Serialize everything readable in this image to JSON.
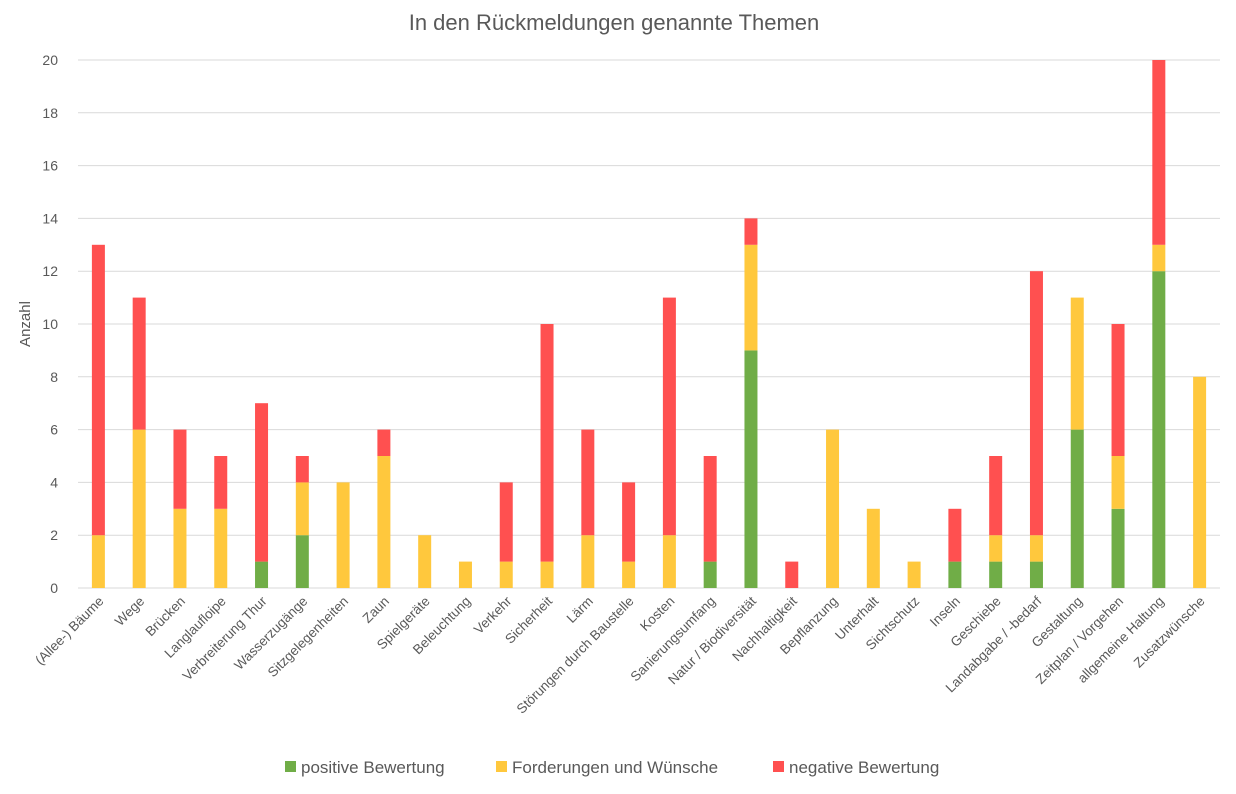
{
  "chart_data": {
    "type": "bar",
    "stacked": true,
    "title": "In den Rückmeldungen genannte Themen",
    "xlabel": "",
    "ylabel": "Anzahl",
    "ylim": [
      0,
      20
    ],
    "yticks": [
      0,
      2,
      4,
      6,
      8,
      10,
      12,
      14,
      16,
      18,
      20
    ],
    "grid": true,
    "legend_position": "bottom",
    "categories": [
      "(Allee-) Bäume",
      "Wege",
      "Brücken",
      "Langlaufloipe",
      "Verbreiterung Thur",
      "Wasserzugänge",
      "Sitzgelegenheiten",
      "Zaun",
      "Spielgeräte",
      "Beleuchtung",
      "Verkehr",
      "Sicherheit",
      "Lärm",
      "Störungen durch Baustelle",
      "Kosten",
      "Sanierungsumfang",
      "Natur / Biodiversität",
      "Nachhaltigkeit",
      "Bepflanzung",
      "Unterhalt",
      "Sichtschutz",
      "Inseln",
      "Geschiebe",
      "Landabgabe / -bedarf",
      "Gestaltung",
      "Zeitplan / Vorgehen",
      "allgemeine Haltung",
      "Zusatzwünsche"
    ],
    "series": [
      {
        "name": "positive Bewertung",
        "color": "#70ad47",
        "values": [
          0,
          0,
          0,
          0,
          1,
          2,
          0,
          0,
          0,
          0,
          0,
          0,
          0,
          0,
          0,
          1,
          9,
          0,
          0,
          0,
          0,
          1,
          1,
          1,
          6,
          3,
          12,
          0
        ]
      },
      {
        "name": "Forderungen und Wünsche",
        "color": "#ffc83d",
        "values": [
          2,
          6,
          3,
          3,
          0,
          2,
          4,
          5,
          2,
          1,
          1,
          1,
          2,
          1,
          2,
          0,
          4,
          0,
          6,
          3,
          1,
          0,
          1,
          1,
          5,
          2,
          1,
          8
        ]
      },
      {
        "name": "negative Bewertung",
        "color": "#ff5050",
        "values": [
          11,
          5,
          3,
          2,
          6,
          1,
          0,
          1,
          0,
          0,
          3,
          9,
          4,
          3,
          9,
          4,
          1,
          1,
          0,
          0,
          0,
          2,
          3,
          10,
          0,
          5,
          7,
          0
        ]
      }
    ]
  }
}
